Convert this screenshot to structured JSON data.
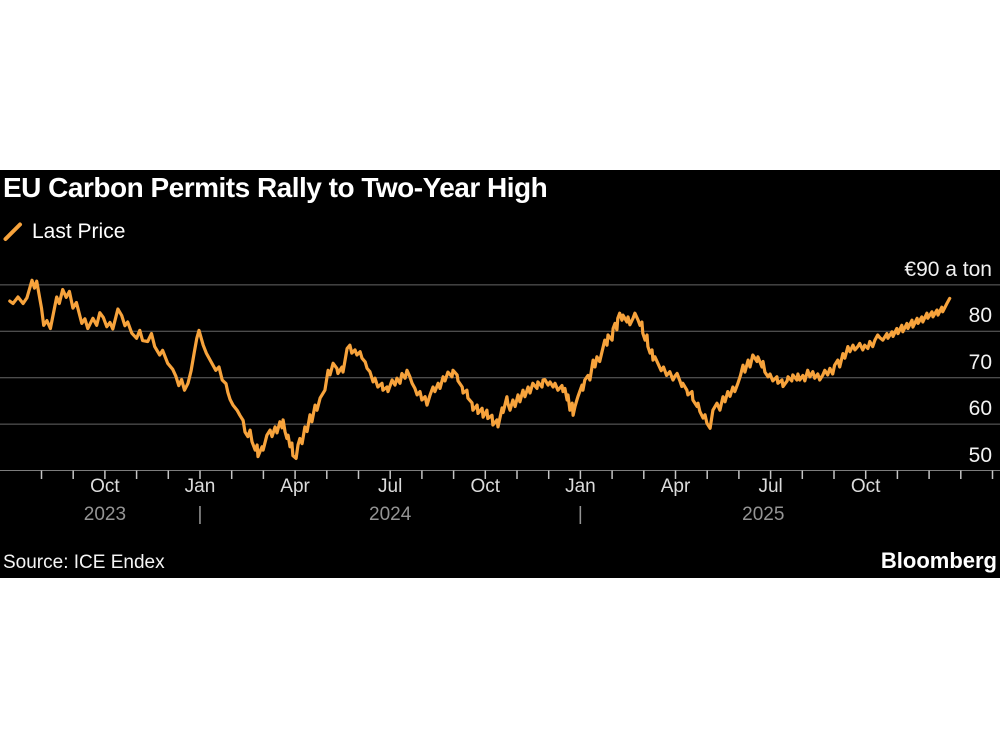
{
  "header": {
    "title": "EU Carbon Permits Rally to Two-Year High"
  },
  "legend": {
    "label": "Last Price"
  },
  "footer": {
    "source": "Source: ICE Endex",
    "brand": "Bloomberg"
  },
  "colors": {
    "accent_orange": "#F7A33C",
    "panel_bg": "#000000",
    "grid": "#666666",
    "baseline": "#7d7d7d",
    "tick": "#c4c4c4",
    "month_label": "#dcdcdc",
    "year_label": "#949494",
    "value_label": "#f2f2f2",
    "text": "#ffffff"
  },
  "chart_data": {
    "type": "line",
    "title": "EU Carbon Permits Rally to Two-Year High",
    "series_name": "Last Price",
    "x_unit": "months since 2023-07-01 (fractional)",
    "y_unit": "EUR per ton",
    "y_axis": {
      "labels": [
        {
          "value": 90,
          "label": "€90 a ton"
        },
        {
          "value": 80,
          "label": "80"
        },
        {
          "value": 70,
          "label": "70"
        },
        {
          "value": 60,
          "label": "60"
        },
        {
          "value": 50,
          "label": "50"
        }
      ],
      "baseline_value": 50,
      "grid": true
    },
    "x_axis": {
      "tick_interval_months": 1,
      "first_tick_month": 1,
      "last_tick_month": 31,
      "month_labels": [
        {
          "m": 3,
          "label": "Oct"
        },
        {
          "m": 6,
          "label": "Jan"
        },
        {
          "m": 9,
          "label": "Apr"
        },
        {
          "m": 12,
          "label": "Jul"
        },
        {
          "m": 15,
          "label": "Oct"
        },
        {
          "m": 18,
          "label": "Jan"
        },
        {
          "m": 21,
          "label": "Apr"
        },
        {
          "m": 24,
          "label": "Jul"
        },
        {
          "m": 27,
          "label": "Oct"
        }
      ],
      "year_labels": [
        {
          "m": 3,
          "label": "2023"
        },
        {
          "m": 6,
          "label": "|"
        },
        {
          "m": 12,
          "label": "2024"
        },
        {
          "m": 18,
          "label": "|"
        },
        {
          "m": 23.77,
          "label": "2025"
        }
      ]
    },
    "points": [
      [
        0.0,
        86.5
      ],
      [
        0.1,
        86.0
      ],
      [
        0.26,
        87.4
      ],
      [
        0.42,
        86.0
      ],
      [
        0.54,
        87.2
      ],
      [
        0.7,
        91.0
      ],
      [
        0.78,
        89.3
      ],
      [
        0.85,
        90.8
      ],
      [
        1.0,
        85.0
      ],
      [
        1.07,
        81.3
      ],
      [
        1.17,
        82.3
      ],
      [
        1.28,
        80.6
      ],
      [
        1.48,
        87.4
      ],
      [
        1.56,
        86.0
      ],
      [
        1.67,
        89.0
      ],
      [
        1.78,
        87.3
      ],
      [
        1.88,
        88.6
      ],
      [
        1.99,
        85.0
      ],
      [
        2.1,
        86.2
      ],
      [
        2.27,
        81.7
      ],
      [
        2.37,
        82.7
      ],
      [
        2.46,
        80.6
      ],
      [
        2.62,
        82.8
      ],
      [
        2.74,
        81.3
      ],
      [
        2.84,
        84.0
      ],
      [
        2.95,
        83.0
      ],
      [
        3.06,
        81.0
      ],
      [
        3.16,
        81.9
      ],
      [
        3.25,
        80.5
      ],
      [
        3.41,
        84.8
      ],
      [
        3.53,
        83.4
      ],
      [
        3.63,
        81.2
      ],
      [
        3.72,
        82.0
      ],
      [
        3.85,
        79.6
      ],
      [
        4.0,
        78.5
      ],
      [
        4.1,
        80.2
      ],
      [
        4.19,
        78.0
      ],
      [
        4.35,
        77.8
      ],
      [
        4.47,
        79.5
      ],
      [
        4.57,
        76.7
      ],
      [
        4.73,
        74.9
      ],
      [
        4.82,
        75.9
      ],
      [
        4.98,
        73.1
      ],
      [
        5.14,
        71.8
      ],
      [
        5.24,
        70.3
      ],
      [
        5.33,
        68.3
      ],
      [
        5.42,
        69.6
      ],
      [
        5.51,
        67.3
      ],
      [
        5.62,
        68.8
      ],
      [
        5.72,
        71.5
      ],
      [
        5.82,
        75.5
      ],
      [
        5.9,
        78.5
      ],
      [
        5.97,
        80.2
      ],
      [
        6.1,
        77.0
      ],
      [
        6.2,
        75.3
      ],
      [
        6.35,
        73.4
      ],
      [
        6.5,
        71.6
      ],
      [
        6.6,
        72.3
      ],
      [
        6.7,
        69.5
      ],
      [
        6.82,
        68.7
      ],
      [
        6.88,
        66.8
      ],
      [
        6.95,
        65.3
      ],
      [
        7.04,
        64.1
      ],
      [
        7.17,
        63.0
      ],
      [
        7.26,
        61.9
      ],
      [
        7.36,
        60.8
      ],
      [
        7.42,
        58.3
      ],
      [
        7.51,
        57.3
      ],
      [
        7.58,
        58.7
      ],
      [
        7.64,
        56.2
      ],
      [
        7.74,
        54.4
      ],
      [
        7.8,
        55.5
      ],
      [
        7.83,
        53.0
      ],
      [
        7.9,
        54.2
      ],
      [
        7.96,
        55.1
      ],
      [
        7.99,
        54.4
      ],
      [
        8.11,
        57.6
      ],
      [
        8.21,
        58.7
      ],
      [
        8.27,
        57.3
      ],
      [
        8.37,
        59.4
      ],
      [
        8.43,
        58.1
      ],
      [
        8.52,
        60.5
      ],
      [
        8.59,
        59.2
      ],
      [
        8.62,
        60.9
      ],
      [
        8.68,
        58.4
      ],
      [
        8.74,
        56.9
      ],
      [
        8.78,
        57.6
      ],
      [
        8.84,
        55.1
      ],
      [
        8.9,
        55.9
      ],
      [
        8.93,
        53.2
      ],
      [
        9.03,
        52.6
      ],
      [
        9.09,
        55.5
      ],
      [
        9.15,
        56.9
      ],
      [
        9.22,
        55.8
      ],
      [
        9.31,
        59.4
      ],
      [
        9.38,
        58.4
      ],
      [
        9.47,
        62.0
      ],
      [
        9.53,
        60.5
      ],
      [
        9.63,
        64.1
      ],
      [
        9.69,
        63.0
      ],
      [
        9.79,
        65.6
      ],
      [
        9.85,
        66.3
      ],
      [
        9.94,
        67.3
      ],
      [
        10.04,
        71.6
      ],
      [
        10.1,
        70.6
      ],
      [
        10.2,
        73.1
      ],
      [
        10.32,
        72.0
      ],
      [
        10.35,
        70.9
      ],
      [
        10.48,
        72.3
      ],
      [
        10.51,
        71.2
      ],
      [
        10.64,
        76.3
      ],
      [
        10.73,
        77.0
      ],
      [
        10.79,
        75.3
      ],
      [
        10.89,
        76.0
      ],
      [
        10.95,
        74.9
      ],
      [
        11.05,
        75.6
      ],
      [
        11.11,
        74.2
      ],
      [
        11.21,
        73.4
      ],
      [
        11.27,
        72.0
      ],
      [
        11.36,
        71.3
      ],
      [
        11.46,
        69.1
      ],
      [
        11.52,
        69.9
      ],
      [
        11.61,
        68.0
      ],
      [
        11.74,
        68.8
      ],
      [
        11.77,
        67.3
      ],
      [
        11.9,
        68.0
      ],
      [
        11.93,
        67.0
      ],
      [
        12.06,
        69.5
      ],
      [
        12.15,
        68.4
      ],
      [
        12.21,
        69.9
      ],
      [
        12.31,
        68.8
      ],
      [
        12.37,
        70.9
      ],
      [
        12.47,
        69.9
      ],
      [
        12.53,
        71.6
      ],
      [
        12.62,
        70.2
      ],
      [
        12.69,
        68.8
      ],
      [
        12.78,
        67.7
      ],
      [
        12.85,
        66.3
      ],
      [
        12.94,
        67.0
      ],
      [
        13.0,
        65.2
      ],
      [
        13.1,
        65.9
      ],
      [
        13.16,
        64.1
      ],
      [
        13.26,
        66.3
      ],
      [
        13.35,
        68.0
      ],
      [
        13.41,
        67.0
      ],
      [
        13.51,
        68.8
      ],
      [
        13.57,
        67.7
      ],
      [
        13.67,
        70.2
      ],
      [
        13.73,
        69.3
      ],
      [
        13.82,
        71.2
      ],
      [
        13.95,
        70.2
      ],
      [
        13.98,
        71.6
      ],
      [
        14.11,
        70.6
      ],
      [
        14.14,
        69.3
      ],
      [
        14.27,
        68.0
      ],
      [
        14.3,
        66.7
      ],
      [
        14.42,
        67.3
      ],
      [
        14.45,
        65.6
      ],
      [
        14.58,
        64.6
      ],
      [
        14.61,
        63.0
      ],
      [
        14.74,
        64.1
      ],
      [
        14.77,
        62.3
      ],
      [
        14.9,
        63.4
      ],
      [
        14.93,
        61.5
      ],
      [
        15.05,
        63.0
      ],
      [
        15.08,
        61.2
      ],
      [
        15.21,
        61.9
      ],
      [
        15.24,
        59.8
      ],
      [
        15.37,
        60.9
      ],
      [
        15.4,
        59.4
      ],
      [
        15.53,
        63.5
      ],
      [
        15.56,
        62.5
      ],
      [
        15.68,
        65.9
      ],
      [
        15.71,
        64.5
      ],
      [
        15.78,
        63.0
      ],
      [
        15.87,
        65.2
      ],
      [
        15.94,
        63.8
      ],
      [
        16.03,
        66.3
      ],
      [
        16.09,
        64.8
      ],
      [
        16.19,
        67.3
      ],
      [
        16.25,
        65.9
      ],
      [
        16.35,
        68.0
      ],
      [
        16.41,
        66.7
      ],
      [
        16.5,
        68.8
      ],
      [
        16.63,
        67.7
      ],
      [
        16.66,
        69.1
      ],
      [
        16.79,
        68.0
      ],
      [
        16.82,
        69.5
      ],
      [
        16.88,
        69.6
      ],
      [
        16.98,
        68.4
      ],
      [
        17.04,
        69.1
      ],
      [
        17.14,
        68.0
      ],
      [
        17.2,
        68.8
      ],
      [
        17.29,
        67.3
      ],
      [
        17.42,
        68.3
      ],
      [
        17.45,
        67.0
      ],
      [
        17.51,
        67.7
      ],
      [
        17.58,
        65.2
      ],
      [
        17.61,
        66.3
      ],
      [
        17.67,
        63.0
      ],
      [
        17.74,
        64.5
      ],
      [
        17.77,
        61.9
      ],
      [
        17.83,
        63.8
      ],
      [
        17.89,
        65.2
      ],
      [
        17.92,
        65.9
      ],
      [
        18.05,
        68.4
      ],
      [
        18.08,
        67.3
      ],
      [
        18.14,
        69.5
      ],
      [
        18.24,
        70.5
      ],
      [
        18.3,
        69.5
      ],
      [
        18.4,
        73.8
      ],
      [
        18.46,
        72.3
      ],
      [
        18.52,
        74.5
      ],
      [
        18.61,
        73.5
      ],
      [
        18.68,
        75.6
      ],
      [
        18.77,
        78.1
      ],
      [
        18.84,
        77.0
      ],
      [
        18.87,
        79.2
      ],
      [
        19.0,
        78.1
      ],
      [
        19.03,
        80.6
      ],
      [
        19.09,
        81.7
      ],
      [
        19.15,
        80.3
      ],
      [
        19.18,
        82.8
      ],
      [
        19.24,
        83.9
      ],
      [
        19.31,
        82.4
      ],
      [
        19.34,
        83.5
      ],
      [
        19.47,
        82.0
      ],
      [
        19.5,
        83.1
      ],
      [
        19.56,
        81.4
      ],
      [
        19.66,
        82.8
      ],
      [
        19.72,
        83.9
      ],
      [
        19.82,
        82.4
      ],
      [
        19.88,
        81.3
      ],
      [
        19.94,
        82.0
      ],
      [
        19.97,
        79.6
      ],
      [
        20.04,
        78.1
      ],
      [
        20.1,
        79.2
      ],
      [
        20.13,
        76.7
      ],
      [
        20.2,
        75.3
      ],
      [
        20.26,
        76.0
      ],
      [
        20.29,
        73.8
      ],
      [
        20.35,
        74.5
      ],
      [
        20.45,
        73.0
      ],
      [
        20.55,
        71.5
      ],
      [
        20.62,
        72.3
      ],
      [
        20.72,
        70.5
      ],
      [
        20.82,
        71.3
      ],
      [
        20.92,
        69.5
      ],
      [
        20.98,
        70.3
      ],
      [
        21.05,
        70.9
      ],
      [
        21.14,
        69.3
      ],
      [
        21.2,
        68.1
      ],
      [
        21.23,
        68.8
      ],
      [
        21.36,
        67.3
      ],
      [
        21.39,
        66.3
      ],
      [
        21.52,
        67.0
      ],
      [
        21.55,
        65.2
      ],
      [
        21.68,
        63.8
      ],
      [
        21.71,
        64.5
      ],
      [
        21.77,
        62.7
      ],
      [
        21.87,
        61.3
      ],
      [
        21.93,
        62.0
      ],
      [
        21.99,
        60.2
      ],
      [
        22.09,
        59.1
      ],
      [
        22.18,
        63.0
      ],
      [
        22.31,
        64.5
      ],
      [
        22.4,
        63.0
      ],
      [
        22.5,
        65.9
      ],
      [
        22.56,
        64.8
      ],
      [
        22.65,
        67.0
      ],
      [
        22.72,
        66.0
      ],
      [
        22.81,
        68.0
      ],
      [
        22.87,
        67.0
      ],
      [
        22.97,
        68.8
      ],
      [
        23.05,
        70.5
      ],
      [
        23.13,
        72.7
      ],
      [
        23.19,
        71.2
      ],
      [
        23.29,
        73.8
      ],
      [
        23.35,
        72.3
      ],
      [
        23.44,
        74.9
      ],
      [
        23.57,
        73.5
      ],
      [
        23.6,
        74.5
      ],
      [
        23.73,
        72.3
      ],
      [
        23.76,
        73.5
      ],
      [
        23.82,
        71.2
      ],
      [
        23.92,
        70.2
      ],
      [
        23.98,
        70.8
      ],
      [
        24.07,
        69.3
      ],
      [
        24.2,
        70.2
      ],
      [
        24.23,
        68.8
      ],
      [
        24.36,
        69.5
      ],
      [
        24.39,
        68.1
      ],
      [
        24.52,
        69.3
      ],
      [
        24.55,
        70.2
      ],
      [
        24.67,
        69.3
      ],
      [
        24.7,
        70.6
      ],
      [
        24.83,
        69.5
      ],
      [
        24.86,
        70.8
      ],
      [
        24.92,
        69.5
      ],
      [
        25.02,
        70.5
      ],
      [
        25.08,
        69.3
      ],
      [
        25.17,
        71.6
      ],
      [
        25.24,
        70.2
      ],
      [
        25.33,
        71.3
      ],
      [
        25.39,
        69.9
      ],
      [
        25.49,
        70.8
      ],
      [
        25.55,
        69.5
      ],
      [
        25.65,
        70.6
      ],
      [
        25.71,
        71.6
      ],
      [
        25.8,
        70.6
      ],
      [
        25.87,
        72.0
      ],
      [
        25.96,
        70.8
      ],
      [
        26.02,
        72.7
      ],
      [
        26.12,
        73.8
      ],
      [
        26.18,
        72.3
      ],
      [
        26.28,
        75.2
      ],
      [
        26.34,
        74.2
      ],
      [
        26.44,
        76.7
      ],
      [
        26.5,
        75.6
      ],
      [
        26.6,
        77.0
      ],
      [
        26.66,
        76.0
      ],
      [
        26.75,
        76.7
      ],
      [
        26.81,
        77.4
      ],
      [
        26.91,
        76.0
      ],
      [
        26.97,
        77.0
      ],
      [
        27.07,
        76.3
      ],
      [
        27.13,
        77.8
      ],
      [
        27.22,
        76.7
      ],
      [
        27.29,
        78.1
      ],
      [
        27.38,
        79.2
      ],
      [
        27.45,
        78.6
      ],
      [
        27.54,
        78.1
      ],
      [
        27.67,
        79.5
      ],
      [
        27.7,
        78.5
      ],
      [
        27.83,
        79.9
      ],
      [
        27.86,
        78.9
      ],
      [
        27.98,
        80.6
      ],
      [
        28.02,
        79.5
      ],
      [
        28.14,
        81.3
      ],
      [
        28.17,
        79.9
      ],
      [
        28.3,
        81.7
      ],
      [
        28.33,
        80.6
      ],
      [
        28.46,
        82.4
      ],
      [
        28.49,
        80.9
      ],
      [
        28.62,
        82.8
      ],
      [
        28.65,
        81.7
      ],
      [
        28.77,
        83.1
      ],
      [
        28.8,
        82.0
      ],
      [
        28.93,
        83.9
      ],
      [
        28.96,
        82.8
      ],
      [
        29.09,
        84.2
      ],
      [
        29.12,
        83.1
      ],
      [
        29.25,
        84.6
      ],
      [
        29.28,
        83.5
      ],
      [
        29.4,
        85.2
      ],
      [
        29.43,
        84.2
      ],
      [
        29.56,
        86.0
      ],
      [
        29.65,
        87.1
      ]
    ]
  }
}
